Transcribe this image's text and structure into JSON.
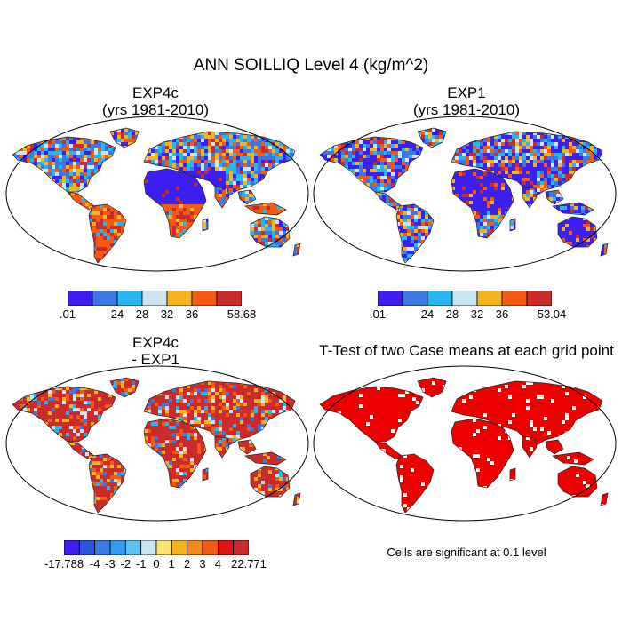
{
  "title": "ANN SOILLIQ Level 4 (kg/m^2)",
  "panels": [
    {
      "id": "exp4c",
      "title_line1": "EXP4c",
      "title_line2": "(yrs 1981-2010)",
      "fill": "mixed"
    },
    {
      "id": "exp1",
      "title_line1": "EXP1",
      "title_line2": "(yrs 1981-2010)",
      "fill": "cool"
    },
    {
      "id": "diff",
      "title_line1": "EXP4c",
      "title_line2": "- EXP1",
      "fill": "warm"
    },
    {
      "id": "ttest",
      "title_line1": "T-Test of two Case means at each grid point",
      "title_line2": "",
      "fill": "red"
    }
  ],
  "colorbars": {
    "exp4c": {
      "colors": [
        "#3d1ff2",
        "#3a78e6",
        "#24b7f0",
        "#c9e6f2",
        "#f5b31c",
        "#f55a12",
        "#cc2b2b"
      ],
      "labels": [
        ".01",
        "",
        "24",
        "28",
        "32",
        "36",
        "",
        "58.68"
      ]
    },
    "exp1": {
      "colors": [
        "#3d1ff2",
        "#3a78e6",
        "#24b7f0",
        "#c9e6f2",
        "#f5b31c",
        "#f55a12",
        "#cc2b2b"
      ],
      "labels": [
        ".01",
        "",
        "24",
        "28",
        "32",
        "36",
        "",
        "53.04"
      ]
    },
    "diff": {
      "colors": [
        "#3d1ff2",
        "#2a55e0",
        "#3a78e6",
        "#2e9ef0",
        "#5cc3f0",
        "#c9e6f2",
        "#fde36a",
        "#f5b31c",
        "#f58a18",
        "#f55a12",
        "#e01414",
        "#cc2b2b"
      ],
      "labels": [
        "-17.788",
        "",
        "-4",
        "-3",
        "-2",
        "-1",
        "0",
        "1",
        "2",
        "3",
        "4",
        "",
        "22.771"
      ]
    }
  },
  "significance_note": "Cells are significant at 0.1 level",
  "colors": {
    "red": "#ee0000",
    "dark_red": "#cc2b2b",
    "blue": "#3d1ff2",
    "mid_blue": "#3a78e6",
    "cyan": "#24b7f0",
    "light": "#c9e6f2",
    "orange": "#f5b31c",
    "red_orange": "#f55a12"
  }
}
